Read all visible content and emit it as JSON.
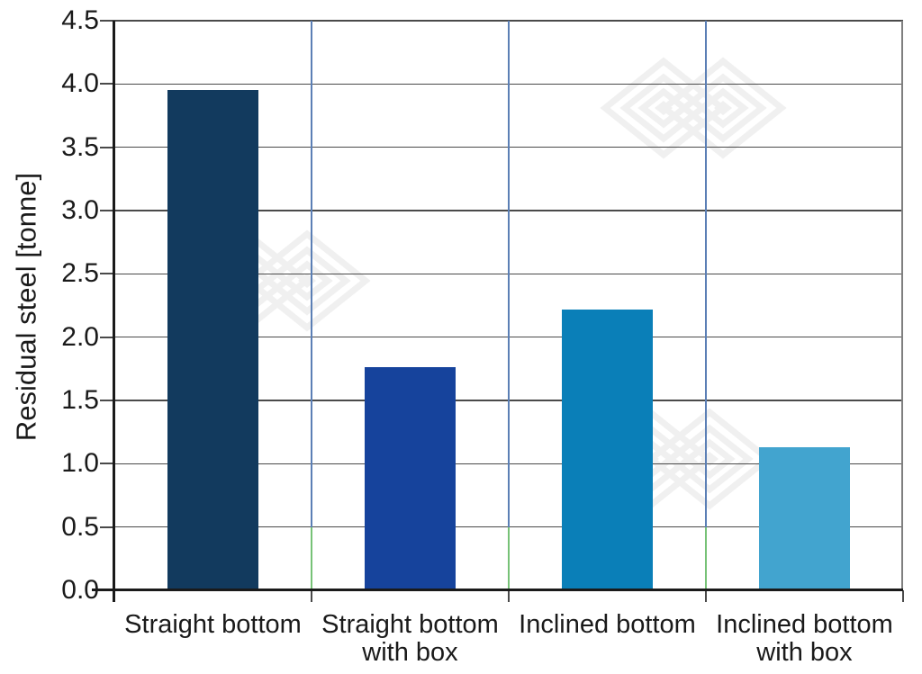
{
  "chart_data": {
    "type": "bar",
    "title": "",
    "xlabel": "",
    "ylabel": "Residual steel [tonne]",
    "categories": [
      "Straight bottom",
      "Straight bottom with box",
      "Inclined bottom",
      "Inclined bottom with box"
    ],
    "category_lines": [
      [
        "Straight bottom"
      ],
      [
        "Straight bottom",
        "with box"
      ],
      [
        "Inclined bottom"
      ],
      [
        "Inclined bottom",
        "with box"
      ]
    ],
    "values": [
      3.95,
      1.76,
      2.22,
      1.13
    ],
    "bar_colors": [
      "#123a5e",
      "#16439c",
      "#0a7fb8",
      "#42a4cf"
    ],
    "ylim": [
      0,
      4.5
    ],
    "ytick_interval": 0.5,
    "ytick_labels": [
      "0.0",
      "0.5",
      "1.0",
      "1.5",
      "2.0",
      "2.5",
      "3.0",
      "3.5",
      "4.0",
      "4.5"
    ],
    "grid": {
      "horizontal": true,
      "vertical_category_separators": true
    },
    "legend": "none"
  },
  "style": {
    "background": "#ffffff",
    "gridline_color": "#4a4a4a",
    "axis_color": "#1a1a1a",
    "right_border_color": "#7f7f7f",
    "separator_upper_color": "#5b7fb5",
    "separator_lower_color": "#77c277",
    "text_color": "#1a1a1a",
    "watermark_color": "#f0f0f0"
  }
}
